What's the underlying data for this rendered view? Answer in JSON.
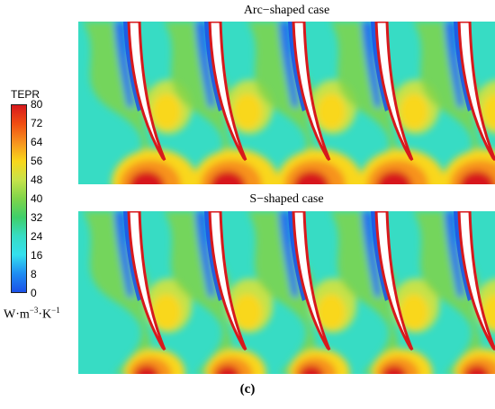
{
  "panels": [
    {
      "title": "Arc−shaped case"
    },
    {
      "title": "S−shaped case"
    }
  ],
  "legend": {
    "title": "TEPR",
    "ticks": [
      "80",
      "72",
      "64",
      "56",
      "48",
      "40",
      "32",
      "24",
      "16",
      "8",
      "0"
    ],
    "unit_base": "W·m",
    "unit_exp1": "−3",
    "unit_mid": "·K",
    "unit_exp2": "−1",
    "colors": [
      "#d7191c",
      "#f04e12",
      "#f7931e",
      "#f9d71c",
      "#c6e24a",
      "#7fd44a",
      "#3fcf6a",
      "#37dcc4",
      "#34e0ee",
      "#1f8ef2",
      "#1b50e8"
    ]
  },
  "caption": "(c)"
}
